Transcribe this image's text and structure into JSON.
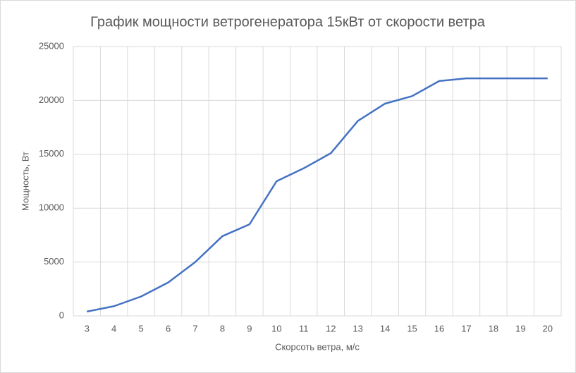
{
  "chart_data": {
    "type": "line",
    "title": "График мощности ветрогенератора 15кВт от скорости ветра",
    "x_label": "Скорсоть ветра, м/с",
    "y_label": "Мощность, Вт",
    "categories": [
      "3",
      "4",
      "5",
      "6",
      "7",
      "8",
      "9",
      "10",
      "11",
      "12",
      "13",
      "14",
      "15",
      "16",
      "17",
      "18",
      "19",
      "20"
    ],
    "series": [
      {
        "name": "Мощность",
        "color": "#4472c4",
        "values": [
          400,
          900,
          1800,
          3100,
          5000,
          7400,
          8500,
          12500,
          13700,
          15100,
          18100,
          19700,
          20400,
          21800,
          22050,
          22050,
          22050,
          22050
        ]
      }
    ],
    "ylim": [
      0,
      25000
    ],
    "yticks": [
      0,
      5000,
      10000,
      15000,
      20000,
      25000
    ],
    "grid": true
  }
}
